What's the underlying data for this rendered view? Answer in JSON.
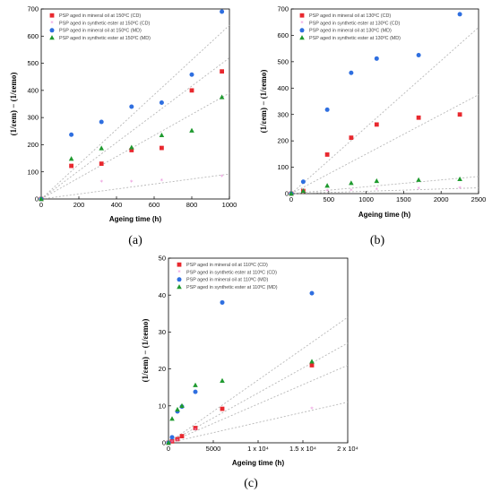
{
  "colors": {
    "mineral_cd": "#e8282e",
    "ester_cd": "#e98ad8",
    "mineral_md": "#2f6fe0",
    "ester_md": "#1f9a2f",
    "fit": "#b8b8b8"
  },
  "chart_data": [
    {
      "type": "scatter",
      "panel": "(a)",
      "xlabel": "Ageing time (h)",
      "ylabel": "(1/εem) − (1/εemo)",
      "xlim": [
        0,
        1000
      ],
      "ylim": [
        0,
        700
      ],
      "xticks": [
        "0",
        "200",
        "400",
        "600",
        "800",
        "1000"
      ],
      "yticks": [
        "0",
        "100",
        "200",
        "300",
        "400",
        "500",
        "600",
        "700"
      ],
      "legend_position": "top-left",
      "series": [
        {
          "name": "PSP aged in mineral oil at 150ºC (CD)",
          "marker": "square",
          "color": "#e8282e",
          "x": [
            0,
            160,
            320,
            480,
            640,
            800,
            960
          ],
          "y": [
            0,
            122,
            130,
            180,
            188,
            400,
            470
          ],
          "fit": [
            0,
            520
          ]
        },
        {
          "name": "PSP aged in synthetic ester at 150ºC (CD)",
          "marker": "star",
          "color": "#e98ad8",
          "x": [
            0,
            320,
            480,
            640,
            960
          ],
          "y": [
            0,
            62,
            63,
            67,
            82
          ],
          "fit": [
            0,
            92
          ]
        },
        {
          "name": "PSP aged in mineral oil at 150ºC (MD)",
          "marker": "circle",
          "color": "#2f6fe0",
          "x": [
            0,
            160,
            320,
            480,
            640,
            800,
            960
          ],
          "y": [
            0,
            237,
            284,
            340,
            355,
            458,
            690
          ],
          "fit": [
            0,
            640
          ]
        },
        {
          "name": "PSP aged in synthetic ester at 150ºC (MD)",
          "marker": "triangle",
          "color": "#1f9a2f",
          "x": [
            0,
            160,
            320,
            480,
            640,
            800,
            960
          ],
          "y": [
            0,
            148,
            187,
            190,
            235,
            252,
            375
          ],
          "fit": [
            0,
            390
          ]
        }
      ]
    },
    {
      "type": "scatter",
      "panel": "(b)",
      "xlabel": "Ageing time (h)",
      "ylabel": "(1/εem) − (1/εemo)",
      "xlim": [
        0,
        2500
      ],
      "ylim": [
        0,
        700
      ],
      "xticks": [
        "0",
        "500",
        "1000",
        "1500",
        "2000",
        "2500"
      ],
      "yticks": [
        "0",
        "100",
        "200",
        "300",
        "400",
        "500",
        "600",
        "700"
      ],
      "legend_position": "top-left",
      "series": [
        {
          "name": "PSP aged in mineral oil at 130ºC (CD)",
          "marker": "square",
          "color": "#e8282e",
          "x": [
            0,
            160,
            480,
            800,
            1140,
            1700,
            2250
          ],
          "y": [
            0,
            10,
            148,
            212,
            262,
            288,
            300
          ],
          "fit": [
            0,
            375
          ]
        },
        {
          "name": "PSP aged in synthetic ester at 130ºC (CD)",
          "marker": "star",
          "color": "#e98ad8",
          "x": [
            0,
            160,
            480,
            800,
            1140,
            1700,
            2250
          ],
          "y": [
            0,
            10,
            10,
            12,
            15,
            18,
            20
          ],
          "fit": [
            0,
            22
          ]
        },
        {
          "name": "PSP aged in mineral oil at 130ºC (MD)",
          "marker": "circle",
          "color": "#2f6fe0",
          "x": [
            0,
            160,
            480,
            800,
            1140,
            1700,
            2250
          ],
          "y": [
            0,
            45,
            318,
            458,
            512,
            525,
            680
          ],
          "fit": [
            0,
            630
          ]
        },
        {
          "name": "PSP aged in synthetic ester at 130ºC (MD)",
          "marker": "triangle",
          "color": "#1f9a2f",
          "x": [
            0,
            160,
            480,
            800,
            1140,
            1700,
            2250
          ],
          "y": [
            0,
            10,
            30,
            40,
            48,
            52,
            55
          ],
          "fit": [
            0,
            65
          ]
        }
      ]
    },
    {
      "type": "scatter",
      "panel": "(c)",
      "xlabel": "Ageing time (h)",
      "ylabel": "(1/εem) − (1/εemo)",
      "xlim": [
        0,
        20000
      ],
      "ylim": [
        0,
        50
      ],
      "xticks": [
        "0",
        "5000",
        "1 x 10⁴",
        "1.5 x 10⁴",
        "2 x 10⁴"
      ],
      "yticks": [
        "0",
        "10",
        "20",
        "30",
        "40",
        "50"
      ],
      "legend_position": "top-left",
      "series": [
        {
          "name": "PSP aged in mineral oil at 110ºC (CD)",
          "marker": "square",
          "color": "#e8282e",
          "x": [
            0,
            400,
            1000,
            1500,
            3000,
            6000,
            16000
          ],
          "y": [
            0,
            0.4,
            1,
            1.8,
            4,
            9.2,
            21
          ],
          "fit": [
            0,
            21
          ]
        },
        {
          "name": "PSP aged in synthetic ester at 110ºC (CD)",
          "marker": "star",
          "color": "#e98ad8",
          "x": [
            0,
            400,
            1000,
            3000,
            16000
          ],
          "y": [
            0,
            0.3,
            0.6,
            3.5,
            9.2
          ],
          "fit": [
            0,
            11
          ]
        },
        {
          "name": "PSP aged in mineral oil at 110ºC (MD)",
          "marker": "circle",
          "color": "#2f6fe0",
          "x": [
            0,
            400,
            1000,
            1500,
            3000,
            6000,
            16000
          ],
          "y": [
            0,
            1.5,
            8.5,
            9.8,
            13.8,
            38,
            40.5
          ],
          "fit": [
            0,
            34
          ]
        },
        {
          "name": "PSP aged in synthetic ester at 110ºC (MD)",
          "marker": "triangle",
          "color": "#1f9a2f",
          "x": [
            0,
            400,
            1000,
            1500,
            3000,
            6000,
            16000
          ],
          "y": [
            0,
            6.5,
            9,
            10,
            15.6,
            16.8,
            22
          ],
          "fit": [
            0,
            27
          ]
        }
      ]
    }
  ]
}
